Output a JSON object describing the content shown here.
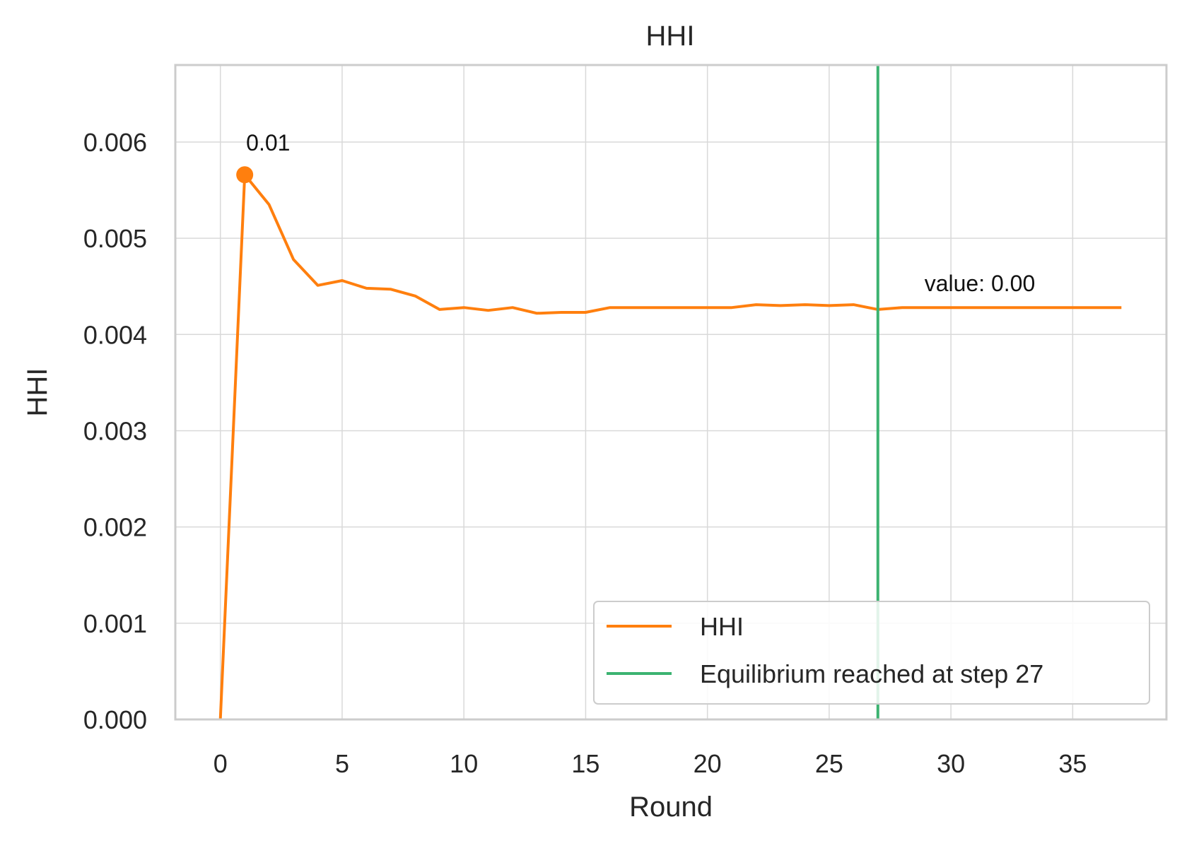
{
  "chart_data": {
    "type": "line",
    "title": "HHI",
    "xlabel": "Round",
    "ylabel": "HHI",
    "xlim": [
      -1.85,
      38.85
    ],
    "ylim": [
      0,
      0.0068
    ],
    "x_ticks": [
      0,
      5,
      10,
      15,
      20,
      25,
      30,
      35
    ],
    "x_tick_labels": [
      "0",
      "5",
      "10",
      "15",
      "20",
      "25",
      "30",
      "35"
    ],
    "y_ticks": [
      0,
      0.001,
      0.002,
      0.003,
      0.004,
      0.005,
      0.006
    ],
    "y_tick_labels": [
      "0.000",
      "0.001",
      "0.002",
      "0.003",
      "0.004",
      "0.005",
      "0.006"
    ],
    "grid": true,
    "legend_position": "lower-right",
    "series": [
      {
        "name": "HHI",
        "color": "#ff7f0e",
        "x": [
          0,
          1,
          2,
          3,
          4,
          5,
          6,
          7,
          8,
          9,
          10,
          11,
          12,
          13,
          14,
          15,
          16,
          17,
          18,
          19,
          20,
          21,
          22,
          23,
          24,
          25,
          26,
          27,
          28,
          29,
          30,
          31,
          32,
          33,
          34,
          35,
          36,
          37
        ],
        "y": [
          0.0,
          0.00566,
          0.00535,
          0.00478,
          0.00451,
          0.00456,
          0.00448,
          0.00447,
          0.0044,
          0.00426,
          0.00428,
          0.00425,
          0.00428,
          0.00422,
          0.00423,
          0.00423,
          0.00428,
          0.00428,
          0.00428,
          0.00428,
          0.00428,
          0.00428,
          0.00431,
          0.0043,
          0.00431,
          0.0043,
          0.00431,
          0.00426,
          0.00428,
          0.00428,
          0.00428,
          0.00428,
          0.00428,
          0.00428,
          0.00428,
          0.00428,
          0.00428,
          0.00428
        ]
      }
    ],
    "max_marker": {
      "x": 1,
      "y": 0.00566,
      "label": "0.01"
    },
    "vline": {
      "x": 27,
      "name": "Equilibrium reached at step 27",
      "color": "#3cb371"
    },
    "annotation": {
      "text": "value: 0.00",
      "x": 29,
      "y": 0.00445
    }
  }
}
